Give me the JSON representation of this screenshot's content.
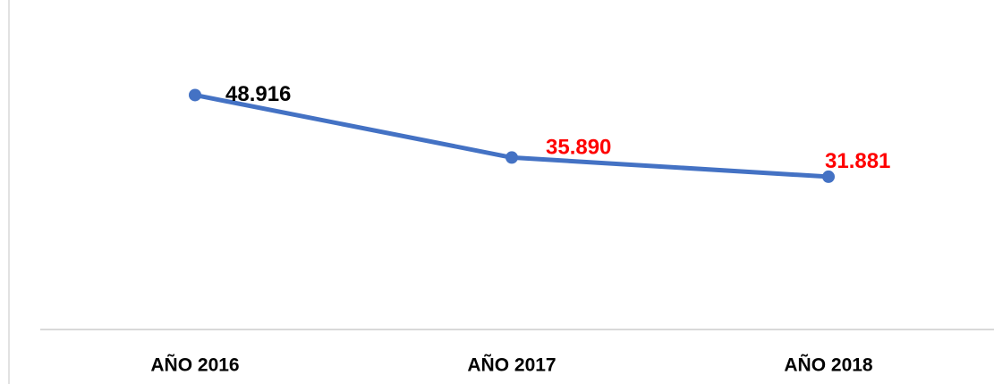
{
  "chart_data": {
    "type": "line",
    "categories": [
      "AÑO 2016",
      "AÑO 2017",
      "AÑO 2018"
    ],
    "values": [
      48916,
      35890,
      31881
    ],
    "value_labels": [
      "48.916",
      "35.890",
      "31.881"
    ],
    "label_colors": [
      "#000000",
      "#ff0000",
      "#ff0000"
    ],
    "color": "#4472c4",
    "ylim": [
      0,
      60000
    ]
  }
}
